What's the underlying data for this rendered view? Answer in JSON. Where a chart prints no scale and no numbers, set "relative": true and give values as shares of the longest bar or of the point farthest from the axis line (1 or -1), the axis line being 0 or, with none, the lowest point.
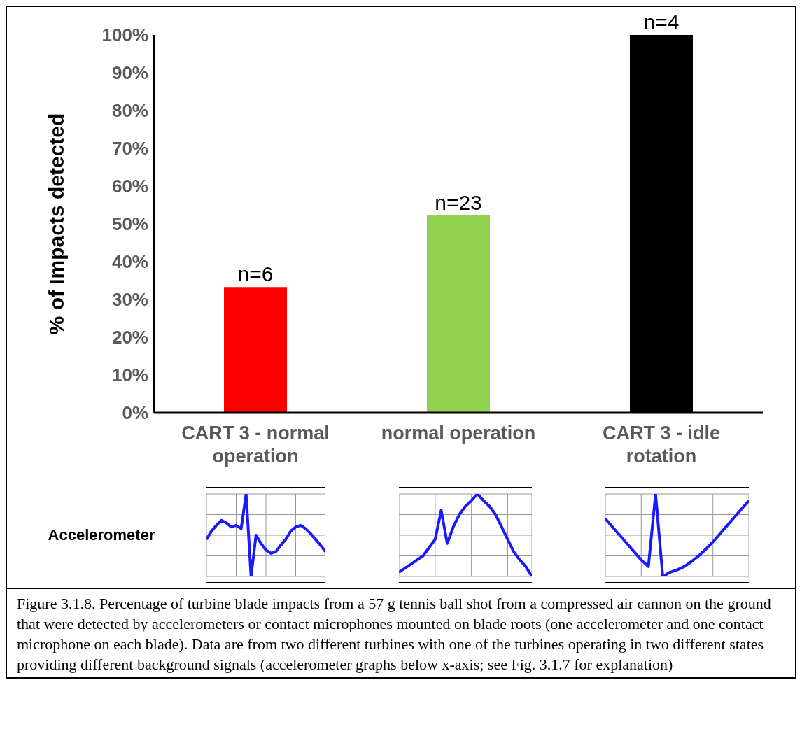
{
  "chart_data": [
    {
      "type": "bar",
      "ylabel": "% of Impacts detected",
      "categories": [
        "CART 3 - normal operation",
        "normal operation",
        "CART 3 - idle rotation"
      ],
      "values": [
        33.3,
        52.2,
        100
      ],
      "colors": [
        "#ff0000",
        "#92d050",
        "#000000"
      ],
      "ylim": [
        0,
        100
      ],
      "yticks": [
        {
          "value": 0,
          "label": "0%"
        },
        {
          "value": 10,
          "label": "10%"
        },
        {
          "value": 20,
          "label": "20%"
        },
        {
          "value": 30,
          "label": "30%"
        },
        {
          "value": 40,
          "label": "40%"
        },
        {
          "value": 50,
          "label": "50%"
        },
        {
          "value": 60,
          "label": "60%"
        },
        {
          "value": 70,
          "label": "70%"
        },
        {
          "value": 80,
          "label": "80%"
        },
        {
          "value": 90,
          "label": "90%"
        },
        {
          "value": 100,
          "label": "100%"
        }
      ],
      "annotations": [
        {
          "text": "n=6",
          "x": "CART 3 - normal operation",
          "y": 33.3
        },
        {
          "text": "n=23",
          "x": "normal operation",
          "y": 52.2
        },
        {
          "text": "n=4",
          "x": "CART 3 - idle rotation",
          "y": 100
        },
        "Accelerometer",
        "Figure 3.1.8.  Percentage of turbine blade impacts from a 57 g tennis ball shot from a compressed air cannon on the ground that were detected by accelerometers or contact microphones mounted on blade roots (one accelerometer and one contact microphone on each blade).  Data are from two different turbines with one of the turbines operating in two different states providing different background signals (accelerometer graphs below x-axis; see Fig. 3.1.7 for explanation)"
      ]
    },
    {
      "type": "line",
      "relative": true,
      "grid": true,
      "color": "#1a1aff",
      "categories": [
        null,
        null,
        null,
        null,
        null,
        null,
        null,
        null,
        null,
        null,
        null,
        null,
        null,
        null,
        null,
        null,
        null,
        null,
        null,
        null,
        null,
        null,
        null,
        null,
        null
      ],
      "values": [
        0.45,
        0.55,
        0.62,
        0.68,
        0.65,
        0.6,
        0.62,
        0.58,
        1.0,
        0.0,
        0.5,
        0.4,
        0.32,
        0.28,
        0.3,
        0.38,
        0.45,
        0.55,
        0.6,
        0.62,
        0.58,
        0.52,
        0.45,
        0.38,
        0.3
      ]
    },
    {
      "type": "line",
      "relative": true,
      "grid": true,
      "color": "#1a1aff",
      "categories": [
        null,
        null,
        null,
        null,
        null,
        null,
        null,
        null,
        null,
        null,
        null,
        null,
        null,
        null,
        null,
        null,
        null,
        null,
        null,
        null,
        null,
        null,
        null
      ],
      "values": [
        0.05,
        0.1,
        0.15,
        0.2,
        0.25,
        0.35,
        0.45,
        0.8,
        0.4,
        0.6,
        0.75,
        0.85,
        0.92,
        1.0,
        0.92,
        0.85,
        0.75,
        0.6,
        0.45,
        0.3,
        0.2,
        0.12,
        0.0
      ]
    },
    {
      "type": "line",
      "relative": true,
      "grid": true,
      "color": "#1a1aff",
      "categories": [
        null,
        null,
        null,
        null,
        null,
        null,
        null,
        null,
        null,
        null,
        null,
        null,
        null,
        null,
        null,
        null,
        null,
        null,
        null,
        null,
        null
      ],
      "values": [
        0.7,
        0.6,
        0.5,
        0.4,
        0.3,
        0.2,
        0.12,
        1.0,
        0.0,
        0.05,
        0.08,
        0.12,
        0.18,
        0.25,
        0.33,
        0.42,
        0.52,
        0.62,
        0.72,
        0.82,
        0.92
      ]
    }
  ]
}
